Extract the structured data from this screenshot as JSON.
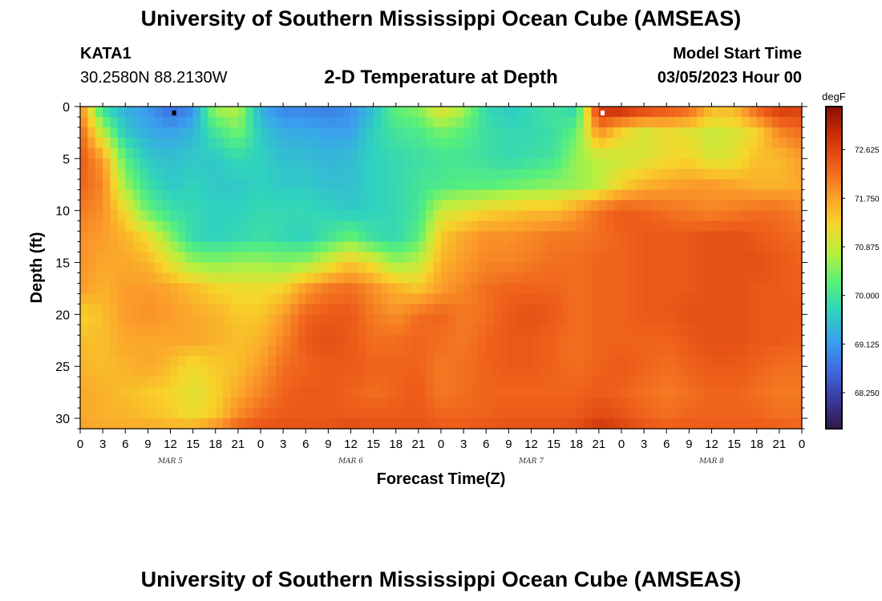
{
  "header": {
    "title": "University of Southern Mississippi Ocean Cube (AMSEAS)",
    "station_id": "KATA1",
    "coords": "30.2580N  88.2130W",
    "subtitle": "2-D Temperature at Depth",
    "model_start_label": "Model Start Time",
    "model_start_value": "03/05/2023 Hour 00"
  },
  "footer": {
    "title": "University of Southern Mississippi Ocean Cube (AMSEAS)"
  },
  "chart_data": {
    "type": "heatmap",
    "title": "2-D Temperature at Depth",
    "xlabel": "Forecast Time(Z)",
    "ylabel": "Depth (ft)",
    "x_tick_labels": [
      "0",
      "3",
      "6",
      "9",
      "12",
      "15",
      "18",
      "21",
      "0",
      "3",
      "6",
      "9",
      "12",
      "15",
      "18",
      "21",
      "0",
      "3",
      "6",
      "9",
      "12",
      "15",
      "18",
      "21",
      "0",
      "3",
      "6",
      "9",
      "12",
      "15",
      "18",
      "21",
      "0"
    ],
    "x_range_hours": [
      0,
      96
    ],
    "date_labels": [
      {
        "label": "MAR 5",
        "hour": 12
      },
      {
        "label": "MAR 6",
        "hour": 36
      },
      {
        "label": "MAR 7",
        "hour": 60
      },
      {
        "label": "MAR 8",
        "hour": 84
      }
    ],
    "y_ticks": [
      0,
      5,
      10,
      15,
      20,
      25,
      30
    ],
    "y_range": [
      0,
      31
    ],
    "y_inverted": true,
    "colorbar": {
      "unit": "degF",
      "ticks": [
        "72.625",
        "71.750",
        "70.875",
        "70.000",
        "69.125",
        "68.250"
      ],
      "range": [
        67.6,
        73.4
      ],
      "colors": [
        "#301848",
        "#3b3aa0",
        "#3f6ae0",
        "#3aa0ee",
        "#2fd3bd",
        "#58f07a",
        "#b8f040",
        "#f7d52a",
        "#fb9a2a",
        "#ee5e1a",
        "#cc3008",
        "#8a1005"
      ]
    },
    "markers": [
      {
        "hour": 12.5,
        "depth": 0.3,
        "color": "#000000"
      },
      {
        "hour": 69.5,
        "depth": 0.3,
        "color": "#ffffff"
      }
    ],
    "time_hours": [
      0,
      3,
      6,
      9,
      12,
      15,
      18,
      21,
      24,
      27,
      30,
      33,
      36,
      39,
      42,
      45,
      48,
      51,
      54,
      57,
      60,
      63,
      66,
      69,
      72,
      75,
      78,
      81,
      84,
      87,
      90,
      93,
      96
    ],
    "depths_ft": [
      0,
      2.5,
      5,
      7.5,
      10,
      12.5,
      15,
      17.5,
      20,
      22.5,
      25,
      27.5,
      30,
      31
    ],
    "temperature_degF": [
      [
        72.0,
        69.8,
        69.3,
        69.1,
        68.6,
        69.0,
        70.7,
        70.8,
        69.3,
        68.9,
        68.9,
        68.8,
        69.0,
        69.5,
        70.3,
        70.5,
        71.2,
        70.7,
        69.8,
        69.6,
        69.8,
        70.0,
        69.7,
        73.0,
        73.1,
        72.8,
        72.6,
        72.4,
        71.6,
        71.6,
        72.4,
        72.8,
        72.7
      ],
      [
        72.3,
        70.8,
        69.6,
        69.3,
        69.2,
        69.4,
        70.0,
        70.4,
        69.6,
        69.3,
        69.3,
        69.2,
        69.2,
        69.7,
        70.0,
        70.1,
        70.4,
        70.2,
        69.9,
        69.8,
        69.8,
        69.9,
        70.3,
        71.9,
        71.3,
        71.0,
        71.2,
        71.1,
        70.9,
        71.0,
        71.3,
        72.0,
        72.2
      ],
      [
        72.4,
        71.8,
        70.2,
        69.6,
        69.5,
        69.6,
        69.6,
        69.8,
        69.7,
        69.5,
        69.5,
        69.4,
        69.5,
        69.7,
        69.8,
        69.9,
        70.0,
        70.0,
        69.9,
        69.8,
        69.9,
        70.0,
        70.6,
        70.8,
        70.9,
        71.0,
        71.2,
        71.3,
        71.0,
        71.1,
        71.5,
        71.5,
        71.8
      ],
      [
        72.3,
        72.0,
        70.6,
        69.9,
        69.6,
        69.7,
        69.6,
        69.6,
        69.7,
        69.6,
        69.6,
        69.5,
        69.5,
        69.7,
        69.8,
        70.0,
        70.1,
        70.2,
        70.2,
        70.3,
        70.4,
        70.5,
        70.6,
        70.8,
        71.3,
        71.6,
        71.7,
        71.8,
        71.8,
        71.7,
        71.6,
        71.6,
        71.7
      ],
      [
        72.1,
        71.9,
        71.2,
        70.3,
        69.9,
        69.8,
        69.7,
        69.7,
        69.8,
        69.8,
        69.8,
        69.7,
        69.6,
        69.7,
        69.8,
        70.0,
        70.9,
        71.1,
        71.3,
        71.4,
        71.5,
        71.5,
        71.8,
        72.2,
        72.4,
        72.3,
        72.2,
        72.1,
        72.0,
        72.1,
        72.2,
        72.2,
        72.0
      ],
      [
        71.9,
        71.8,
        71.6,
        71.2,
        70.5,
        69.8,
        69.7,
        69.8,
        69.9,
        69.8,
        69.7,
        70.0,
        70.3,
        69.9,
        69.8,
        70.2,
        71.4,
        71.7,
        71.9,
        71.9,
        72.0,
        72.1,
        72.1,
        72.2,
        72.3,
        72.4,
        72.4,
        72.4,
        72.5,
        72.5,
        72.4,
        72.3,
        72.2
      ],
      [
        71.9,
        71.7,
        71.7,
        71.6,
        71.1,
        70.6,
        70.5,
        70.6,
        70.6,
        70.5,
        70.6,
        71.0,
        71.4,
        71.1,
        70.6,
        70.8,
        71.6,
        71.8,
        72.0,
        72.0,
        72.1,
        72.2,
        72.2,
        72.3,
        72.3,
        72.4,
        72.4,
        72.4,
        72.5,
        72.5,
        72.5,
        72.4,
        72.3
      ],
      [
        71.8,
        71.6,
        71.8,
        71.8,
        71.7,
        71.5,
        71.3,
        71.2,
        71.2,
        71.3,
        71.8,
        72.1,
        72.2,
        71.9,
        71.6,
        71.4,
        71.8,
        72.0,
        72.2,
        72.3,
        72.3,
        72.3,
        72.2,
        72.3,
        72.3,
        72.4,
        72.4,
        72.4,
        72.5,
        72.5,
        72.4,
        72.4,
        72.3
      ],
      [
        71.3,
        71.5,
        71.8,
        71.9,
        71.8,
        71.7,
        71.6,
        71.4,
        71.4,
        71.8,
        72.3,
        72.4,
        72.4,
        72.1,
        71.9,
        72.2,
        72.3,
        72.1,
        72.2,
        72.4,
        72.5,
        72.4,
        72.2,
        72.3,
        72.3,
        72.4,
        72.4,
        72.5,
        72.5,
        72.5,
        72.4,
        72.4,
        72.4
      ],
      [
        71.5,
        71.5,
        71.7,
        71.7,
        71.7,
        71.7,
        71.6,
        71.5,
        71.6,
        72.0,
        72.4,
        72.5,
        72.4,
        72.2,
        72.2,
        72.3,
        72.2,
        72.1,
        72.3,
        72.4,
        72.4,
        72.3,
        72.2,
        72.3,
        72.3,
        72.3,
        72.3,
        72.4,
        72.5,
        72.5,
        72.4,
        72.4,
        72.3
      ],
      [
        71.6,
        71.5,
        71.6,
        71.7,
        71.5,
        71.2,
        71.4,
        71.5,
        71.8,
        72.2,
        72.3,
        72.4,
        72.4,
        72.3,
        72.3,
        72.3,
        72.1,
        72.2,
        72.3,
        72.4,
        72.4,
        72.3,
        72.2,
        72.3,
        72.4,
        72.3,
        72.2,
        72.3,
        72.4,
        72.4,
        72.3,
        72.2,
        72.2
      ],
      [
        71.7,
        71.6,
        71.5,
        71.4,
        71.3,
        71.1,
        71.3,
        71.7,
        72.0,
        72.3,
        72.4,
        72.4,
        72.3,
        72.2,
        72.3,
        72.4,
        72.1,
        72.2,
        72.3,
        72.3,
        72.3,
        72.3,
        72.3,
        72.4,
        72.3,
        72.2,
        72.1,
        72.2,
        72.3,
        72.3,
        72.2,
        72.1,
        72.1
      ],
      [
        71.7,
        71.6,
        71.6,
        71.5,
        71.4,
        71.2,
        71.4,
        72.0,
        72.3,
        72.4,
        72.4,
        72.4,
        72.4,
        72.4,
        72.4,
        72.4,
        72.3,
        72.3,
        72.3,
        72.4,
        72.4,
        72.4,
        72.4,
        72.6,
        72.5,
        72.3,
        72.2,
        72.3,
        72.3,
        72.3,
        72.3,
        72.2,
        72.2
      ],
      [
        71.8,
        71.7,
        71.7,
        71.7,
        71.7,
        71.8,
        72.1,
        72.4,
        72.5,
        72.5,
        72.5,
        72.5,
        72.6,
        72.5,
        72.5,
        72.5,
        72.4,
        72.4,
        72.5,
        72.5,
        72.5,
        72.5,
        72.6,
        72.9,
        72.7,
        72.5,
        72.4,
        72.4,
        72.4,
        72.4,
        72.4,
        72.4,
        72.3
      ]
    ]
  }
}
